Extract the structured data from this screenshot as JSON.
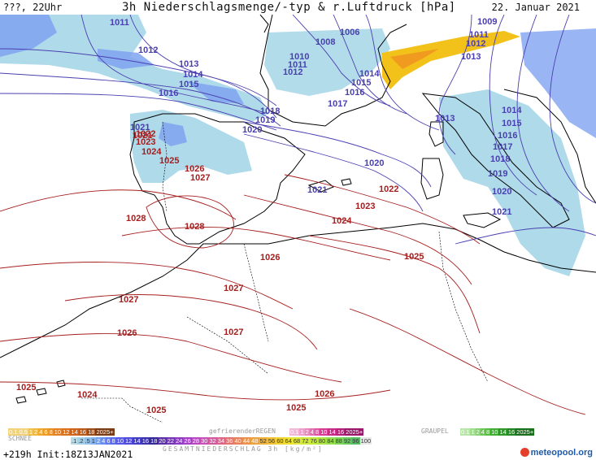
{
  "header": {
    "left_label": "???, 22Uhr",
    "title": "3h Niederschlagsmenge/-typ & r.Luftdruck [hPa]",
    "date": "22. Januar 2021"
  },
  "map": {
    "colors": {
      "sea": "#ffffff",
      "coast": "#000000",
      "isobar_low": "#4a3fb0",
      "isobar_high": "#a61e1e",
      "precip_light": "#a6d6e8",
      "precip_mid": "#7fa3f0",
      "precip_heavy": "#5a6bf0",
      "snow_yellow": "#f2c21b",
      "snow_orange": "#f09a20"
    },
    "isobar_labels": [
      {
        "text": "1011",
        "kind": "low"
      },
      {
        "text": "1012",
        "kind": "low"
      },
      {
        "text": "1013",
        "kind": "low"
      },
      {
        "text": "1014",
        "kind": "low"
      },
      {
        "text": "1015",
        "kind": "low"
      },
      {
        "text": "1016",
        "kind": "low"
      },
      {
        "text": "1006",
        "kind": "low"
      },
      {
        "text": "1008",
        "kind": "low"
      },
      {
        "text": "1010",
        "kind": "low"
      },
      {
        "text": "1011",
        "kind": "low"
      },
      {
        "text": "1012",
        "kind": "low"
      },
      {
        "text": "1014",
        "kind": "low"
      },
      {
        "text": "1015",
        "kind": "low"
      },
      {
        "text": "1016",
        "kind": "low"
      },
      {
        "text": "1017",
        "kind": "low"
      },
      {
        "text": "1018",
        "kind": "low"
      },
      {
        "text": "1019",
        "kind": "low"
      },
      {
        "text": "1020",
        "kind": "low"
      },
      {
        "text": "1021",
        "kind": "low"
      },
      {
        "text": "1009",
        "kind": "low"
      },
      {
        "text": "1011",
        "kind": "low"
      },
      {
        "text": "1012",
        "kind": "low"
      },
      {
        "text": "1013",
        "kind": "low"
      },
      {
        "text": "1013",
        "kind": "low"
      },
      {
        "text": "1014",
        "kind": "low"
      },
      {
        "text": "1015",
        "kind": "low"
      },
      {
        "text": "1016",
        "kind": "low"
      },
      {
        "text": "1017",
        "kind": "low"
      },
      {
        "text": "1018",
        "kind": "low"
      },
      {
        "text": "1019",
        "kind": "low"
      },
      {
        "text": "1020",
        "kind": "low"
      },
      {
        "text": "1021",
        "kind": "low"
      },
      {
        "text": "1020",
        "kind": "low"
      },
      {
        "text": "1021",
        "kind": "low"
      },
      {
        "text": "1021",
        "kind": "high"
      },
      {
        "text": "1022",
        "kind": "high"
      },
      {
        "text": "1023",
        "kind": "high"
      },
      {
        "text": "1024",
        "kind": "high"
      },
      {
        "text": "1025",
        "kind": "high"
      },
      {
        "text": "1026",
        "kind": "high"
      },
      {
        "text": "1027",
        "kind": "high"
      },
      {
        "text": "1028",
        "kind": "high"
      },
      {
        "text": "1028",
        "kind": "high"
      },
      {
        "text": "1022",
        "kind": "high"
      },
      {
        "text": "1023",
        "kind": "high"
      },
      {
        "text": "1024",
        "kind": "high"
      },
      {
        "text": "1026",
        "kind": "high"
      },
      {
        "text": "1025",
        "kind": "high"
      },
      {
        "text": "1027",
        "kind": "high"
      },
      {
        "text": "1027",
        "kind": "high"
      },
      {
        "text": "1026",
        "kind": "high"
      },
      {
        "text": "1027",
        "kind": "high"
      },
      {
        "text": "1025",
        "kind": "high"
      },
      {
        "text": "1024",
        "kind": "high"
      },
      {
        "text": "1025",
        "kind": "high"
      },
      {
        "text": "1025",
        "kind": "high"
      },
      {
        "text": "1026",
        "kind": "high"
      }
    ]
  },
  "legend": {
    "snow_top": [
      "0.1",
      "0.5",
      "1",
      "2",
      "4",
      "6",
      "8",
      "10",
      "12",
      "14",
      "16",
      "18",
      "2025+"
    ],
    "snow_label": "SCHNEE",
    "freezing_label": "gefrierenderREGEN",
    "freezing": [
      "0.1",
      "1",
      "2",
      "4",
      "8",
      "10",
      "14",
      "16",
      "2025+"
    ],
    "graupel_label": "GRAUPEL",
    "graupel": [
      "0.1",
      "1",
      "2",
      "4",
      "8",
      "10",
      "14",
      "16",
      "2025+"
    ],
    "total_row": [
      ".1",
      ".2",
      ".5",
      "1",
      "2",
      "4",
      "6",
      "8",
      "10",
      "12",
      "14",
      "16",
      "18",
      "20",
      "22",
      "24",
      "26",
      "28",
      "30",
      "32",
      "34",
      "36",
      "40",
      "44",
      "48",
      "52",
      "56",
      "60",
      "64",
      "68",
      "72",
      "76",
      "80",
      "84",
      "88",
      "92",
      "96",
      "100"
    ],
    "total_label": "GESAMTNIEDERSCHLAG 3h [kg/m²]",
    "run_info": "+219h Init:18Z13JAN2021",
    "brand": "meteopool.org"
  }
}
